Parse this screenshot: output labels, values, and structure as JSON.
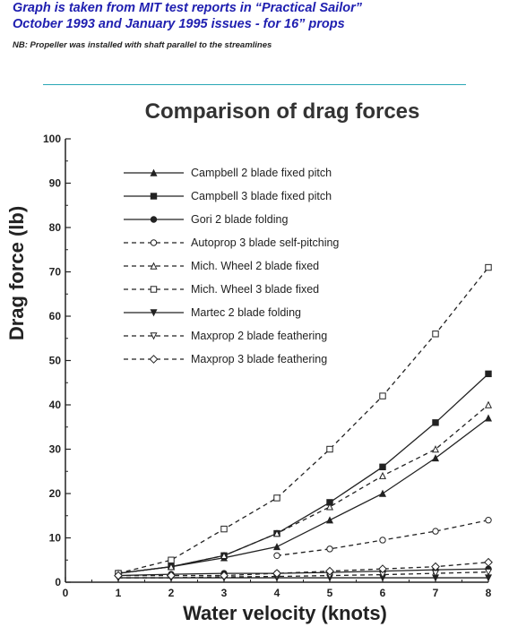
{
  "header": {
    "line1": "Graph is taken from MIT test  reports in “Practical Sailor”",
    "line2": "October 1993 and January  1995 issues -  for  16” props",
    "note": "NB:  Propeller was installed with shaft parallel to the streamlines"
  },
  "chart_data": {
    "type": "line",
    "title": "Comparison of drag forces",
    "xlabel": "Water velocity (knots)",
    "ylabel": "Drag force (lb)",
    "xlim": [
      0,
      8
    ],
    "ylim": [
      0,
      100
    ],
    "xticks": [
      "0",
      "1",
      "2",
      "3",
      "4",
      "5",
      "6",
      "7",
      "8"
    ],
    "yticks": [
      "0",
      "10",
      "20",
      "30",
      "40",
      "50",
      "60",
      "70",
      "80",
      "90",
      "100"
    ],
    "legend_position": "top-left",
    "grid": false,
    "series": [
      {
        "name": "Campbell 2 blade fixed pitch",
        "dash": "solid",
        "marker": "triangle-filled",
        "x": [
          1,
          2,
          3,
          4,
          5,
          6,
          7,
          8
        ],
        "y": [
          2,
          3.5,
          5.5,
          8,
          14,
          20,
          28,
          37
        ]
      },
      {
        "name": "Campbell 3 blade fixed pitch",
        "dash": "solid",
        "marker": "square-filled",
        "x": [
          1,
          2,
          3,
          4,
          5,
          6,
          7,
          8
        ],
        "y": [
          2,
          3.5,
          6,
          11,
          18,
          26,
          36,
          47
        ]
      },
      {
        "name": "Gori 2 blade folding",
        "dash": "solid",
        "marker": "circle-filled",
        "x": [
          1,
          2,
          3,
          4,
          5,
          6,
          7,
          8
        ],
        "y": [
          1.5,
          1.8,
          2,
          2,
          2.2,
          2.5,
          2.8,
          3
        ]
      },
      {
        "name": "Autoprop 3 blade self-pitching",
        "dash": "dashed",
        "marker": "circle-open",
        "x": [
          4,
          5,
          6,
          7,
          8
        ],
        "y": [
          6,
          7.5,
          9.5,
          11.5,
          14
        ]
      },
      {
        "name": "Mich. Wheel 2 blade fixed",
        "dash": "dashed",
        "marker": "triangle-open",
        "x": [
          1,
          2,
          3,
          4,
          5,
          6,
          7,
          8
        ],
        "y": [
          2,
          3.5,
          6,
          11,
          17,
          24,
          30,
          40
        ]
      },
      {
        "name": "Mich. Wheel 3 blade fixed",
        "dash": "dashed",
        "marker": "square-open",
        "x": [
          1,
          2,
          3,
          4,
          5,
          6,
          7,
          8
        ],
        "y": [
          2,
          5,
          12,
          19,
          30,
          42,
          56,
          71
        ]
      },
      {
        "name": "Martec 2 blade folding",
        "dash": "solid",
        "marker": "triangle-down-filled",
        "x": [
          1,
          2,
          3,
          4,
          5,
          6,
          7,
          8
        ],
        "y": [
          1,
          1,
          1,
          1,
          1,
          1,
          1,
          1
        ]
      },
      {
        "name": "Maxprop 2 blade feathering",
        "dash": "dashed",
        "marker": "triangle-down-open",
        "x": [
          1,
          2,
          3,
          4,
          5,
          6,
          7,
          8
        ],
        "y": [
          1,
          1,
          1.2,
          1.3,
          1.5,
          1.7,
          2,
          2.3
        ]
      },
      {
        "name": "Maxprop 3 blade feathering",
        "dash": "dashed",
        "marker": "diamond-open",
        "x": [
          1,
          2,
          3,
          4,
          5,
          6,
          7,
          8
        ],
        "y": [
          1.5,
          1.5,
          1.5,
          2,
          2.5,
          3,
          3.5,
          4.5
        ]
      }
    ]
  }
}
